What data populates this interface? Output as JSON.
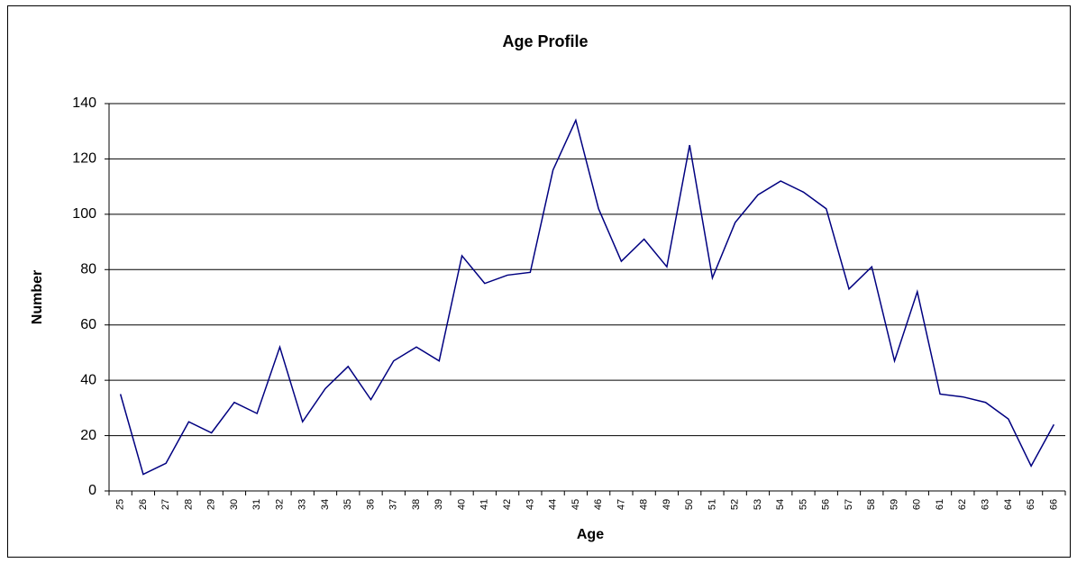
{
  "chart_data": {
    "type": "line",
    "title": "Age Profile",
    "x_label": "Age",
    "y_label": "Number",
    "categories": [
      "25",
      "26",
      "27",
      "28",
      "29",
      "30",
      "31",
      "32",
      "33",
      "34",
      "35",
      "36",
      "37",
      "38",
      "39",
      "40",
      "41",
      "42",
      "43",
      "44",
      "45",
      "46",
      "47",
      "48",
      "49",
      "50",
      "51",
      "52",
      "53",
      "54",
      "55",
      "56",
      "57",
      "58",
      "59",
      "60",
      "61",
      "62",
      "63",
      "64",
      "65",
      "66"
    ],
    "values": [
      35,
      6,
      10,
      25,
      21,
      32,
      28,
      52,
      25,
      37,
      45,
      33,
      47,
      52,
      47,
      85,
      75,
      78,
      79,
      116,
      134,
      102,
      83,
      91,
      81,
      125,
      77,
      97,
      107,
      112,
      108,
      102,
      73,
      81,
      47,
      72,
      35,
      34,
      32,
      26,
      9,
      24
    ],
    "color": "#000080",
    "ylim": [
      0,
      140
    ],
    "yticks": [
      0,
      20,
      40,
      60,
      80,
      100,
      120,
      140
    ],
    "grid": true
  }
}
